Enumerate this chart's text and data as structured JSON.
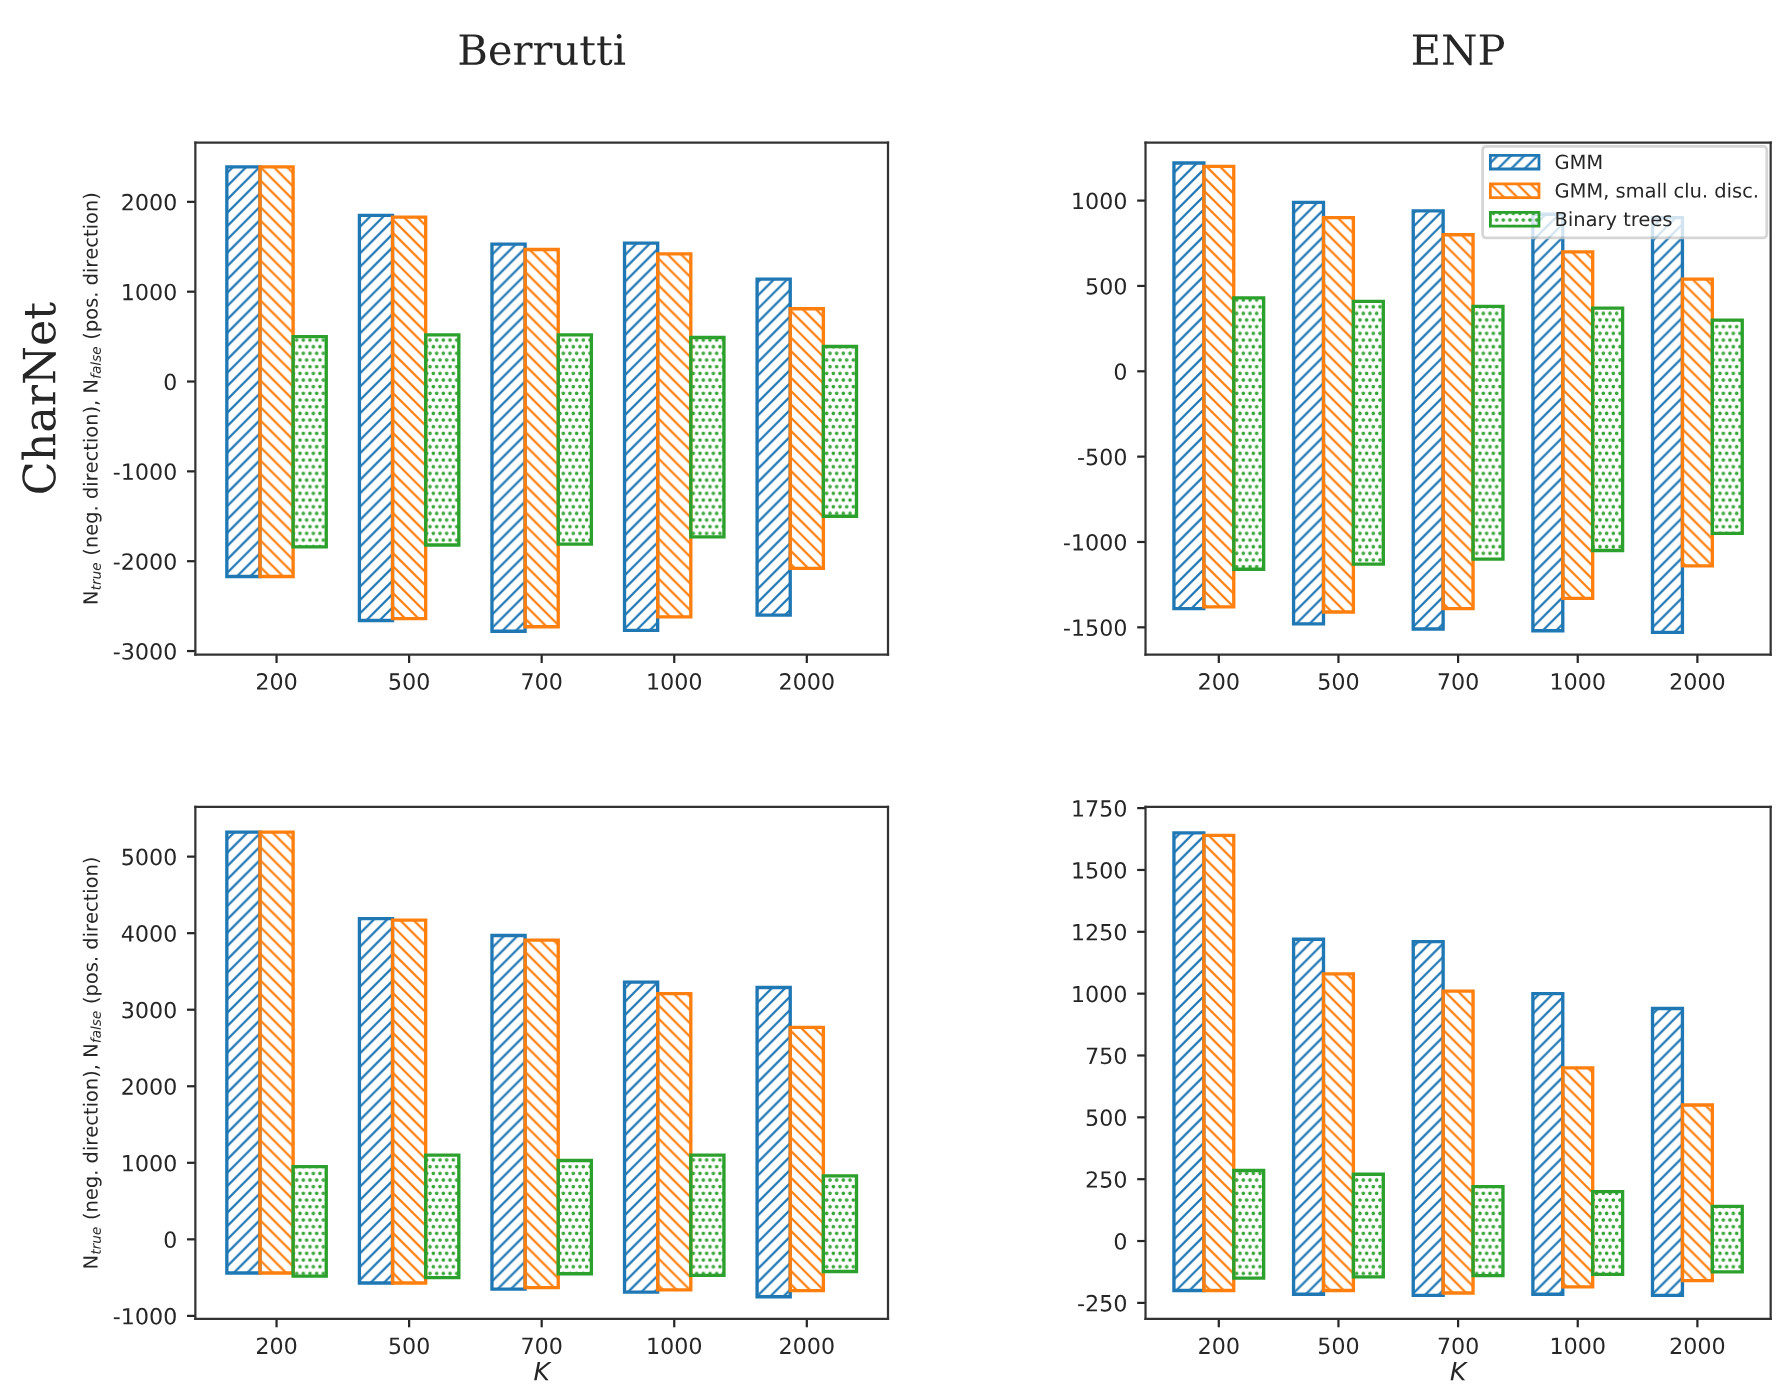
{
  "chart_data": [
    {
      "type": "bar",
      "title": "Berrutti",
      "annotations": [
        "CharNet"
      ],
      "ylabel": "N$_{true}$ (neg. direction), N$_{false}$ (pos. direction)",
      "categories": [
        "200",
        "500",
        "700",
        "1000",
        "2000"
      ],
      "ylim": [
        -3040,
        2660
      ],
      "yticks": [
        -3000,
        -2000,
        -1000,
        0,
        1000,
        2000
      ],
      "grid": false,
      "legend": false,
      "series": [
        {
          "color": "#1f77b4",
          "base": [
            -2170,
            -2660,
            -2780,
            -2770,
            -2600
          ],
          "values": [
            4560,
            4510,
            4310,
            4310,
            3740
          ]
        },
        {
          "color": "#ff7f0e",
          "base": [
            -2170,
            -2640,
            -2730,
            -2620,
            -2080
          ],
          "values": [
            4560,
            4470,
            4200,
            4040,
            2890
          ]
        },
        {
          "color": "#2ca02c",
          "base": [
            -1840,
            -1820,
            -1810,
            -1730,
            -1500
          ],
          "values": [
            2340,
            2340,
            2330,
            2220,
            1890
          ]
        }
      ]
    },
    {
      "type": "bar",
      "title": "ENP",
      "categories": [
        "200",
        "500",
        "700",
        "1000",
        "2000"
      ],
      "ylim": [
        -1660,
        1340
      ],
      "yticks": [
        -1500,
        -1000,
        -500,
        0,
        500,
        1000
      ],
      "grid": false,
      "legend": "top right",
      "series": [
        {
          "name": "GMM",
          "color": "#1f77b4",
          "base": [
            -1390,
            -1480,
            -1510,
            -1520,
            -1530
          ],
          "values": [
            2610,
            2470,
            2450,
            2440,
            2430
          ]
        },
        {
          "name": "GMM, small clu. disc.",
          "color": "#ff7f0e",
          "base": [
            -1380,
            -1410,
            -1390,
            -1330,
            -1140
          ],
          "values": [
            2580,
            2310,
            2190,
            2030,
            1680
          ]
        },
        {
          "name": "Binary trees",
          "color": "#2ca02c",
          "base": [
            -1160,
            -1130,
            -1100,
            -1050,
            -950
          ],
          "values": [
            1590,
            1540,
            1480,
            1420,
            1250
          ]
        }
      ]
    },
    {
      "type": "bar",
      "ylabel": "N$_{true}$ (neg. direction), N$_{false}$ (pos. direction)",
      "xlabel": "K",
      "categories": [
        "200",
        "500",
        "700",
        "1000",
        "2000"
      ],
      "ylim": [
        -1040,
        5650
      ],
      "yticks": [
        -1000,
        0,
        1000,
        2000,
        3000,
        4000,
        5000
      ],
      "grid": false,
      "legend": false,
      "series": [
        {
          "color": "#1f77b4",
          "base": [
            -440,
            -570,
            -650,
            -690,
            -750
          ],
          "values": [
            5760,
            4760,
            4620,
            4050,
            4040
          ]
        },
        {
          "color": "#ff7f0e",
          "base": [
            -440,
            -570,
            -630,
            -660,
            -670
          ],
          "values": [
            5760,
            4740,
            4540,
            3870,
            3440
          ]
        },
        {
          "color": "#2ca02c",
          "base": [
            -480,
            -500,
            -450,
            -470,
            -420
          ],
          "values": [
            1430,
            1600,
            1480,
            1570,
            1250
          ]
        }
      ]
    },
    {
      "type": "bar",
      "xlabel": "K",
      "categories": [
        "200",
        "500",
        "700",
        "1000",
        "2000"
      ],
      "ylim": [
        -315,
        1755
      ],
      "yticks": [
        -250,
        0,
        250,
        500,
        750,
        1000,
        1250,
        1500,
        1750
      ],
      "grid": false,
      "legend": false,
      "series": [
        {
          "color": "#1f77b4",
          "base": [
            -200,
            -215,
            -220,
            -215,
            -220
          ],
          "values": [
            1850,
            1435,
            1430,
            1215,
            1160
          ]
        },
        {
          "color": "#ff7f0e",
          "base": [
            -200,
            -200,
            -210,
            -185,
            -160
          ],
          "values": [
            1840,
            1280,
            1220,
            885,
            710
          ]
        },
        {
          "color": "#2ca02c",
          "base": [
            -150,
            -145,
            -140,
            -135,
            -125
          ],
          "values": [
            435,
            415,
            360,
            335,
            265
          ]
        }
      ]
    }
  ]
}
